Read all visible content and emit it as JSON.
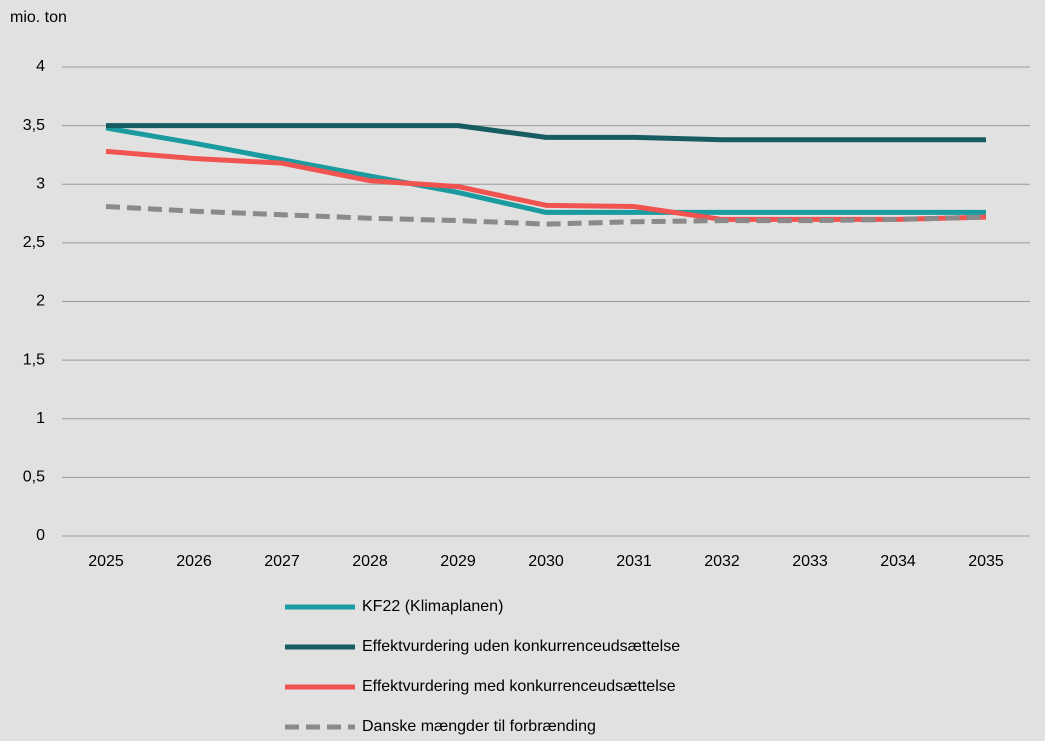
{
  "chart_data": {
    "type": "line",
    "y_label": "mio. ton",
    "categories": [
      "2025",
      "2026",
      "2027",
      "2028",
      "2029",
      "2030",
      "2031",
      "2032",
      "2033",
      "2034",
      "2035"
    ],
    "series": [
      {
        "name": "KF22 (Klimaplanen)",
        "color": "#1a9ba0",
        "dash": false,
        "values": [
          3.48,
          3.35,
          3.21,
          3.07,
          2.93,
          2.76,
          2.76,
          2.76,
          2.76,
          2.76,
          2.76
        ]
      },
      {
        "name": "Effektvurdering uden konkurrenceudsættelse",
        "color": "#175c61",
        "dash": false,
        "values": [
          3.5,
          3.5,
          3.5,
          3.5,
          3.5,
          3.4,
          3.4,
          3.38,
          3.38,
          3.38,
          3.38
        ]
      },
      {
        "name": "Effektvurdering med konkurrenceudsættelse",
        "color": "#f05350",
        "dash": false,
        "values": [
          3.28,
          3.22,
          3.18,
          3.03,
          2.98,
          2.82,
          2.81,
          2.7,
          2.7,
          2.7,
          2.72
        ]
      },
      {
        "name": "Danske mængder til forbrænding",
        "color": "#8a8a8a",
        "dash": true,
        "values": [
          2.81,
          2.77,
          2.74,
          2.71,
          2.69,
          2.66,
          2.68,
          2.69,
          2.69,
          2.7,
          2.72
        ]
      }
    ],
    "ylim": [
      0,
      4
    ],
    "yticks": [
      0,
      {
        "value": 0.5,
        "label": "0,5"
      },
      1,
      {
        "value": 1.5,
        "label": "1,5"
      },
      2,
      {
        "value": 2.5,
        "label": "2,5"
      },
      3,
      {
        "value": 3.5,
        "label": "3,5"
      },
      4
    ],
    "grid": true
  }
}
